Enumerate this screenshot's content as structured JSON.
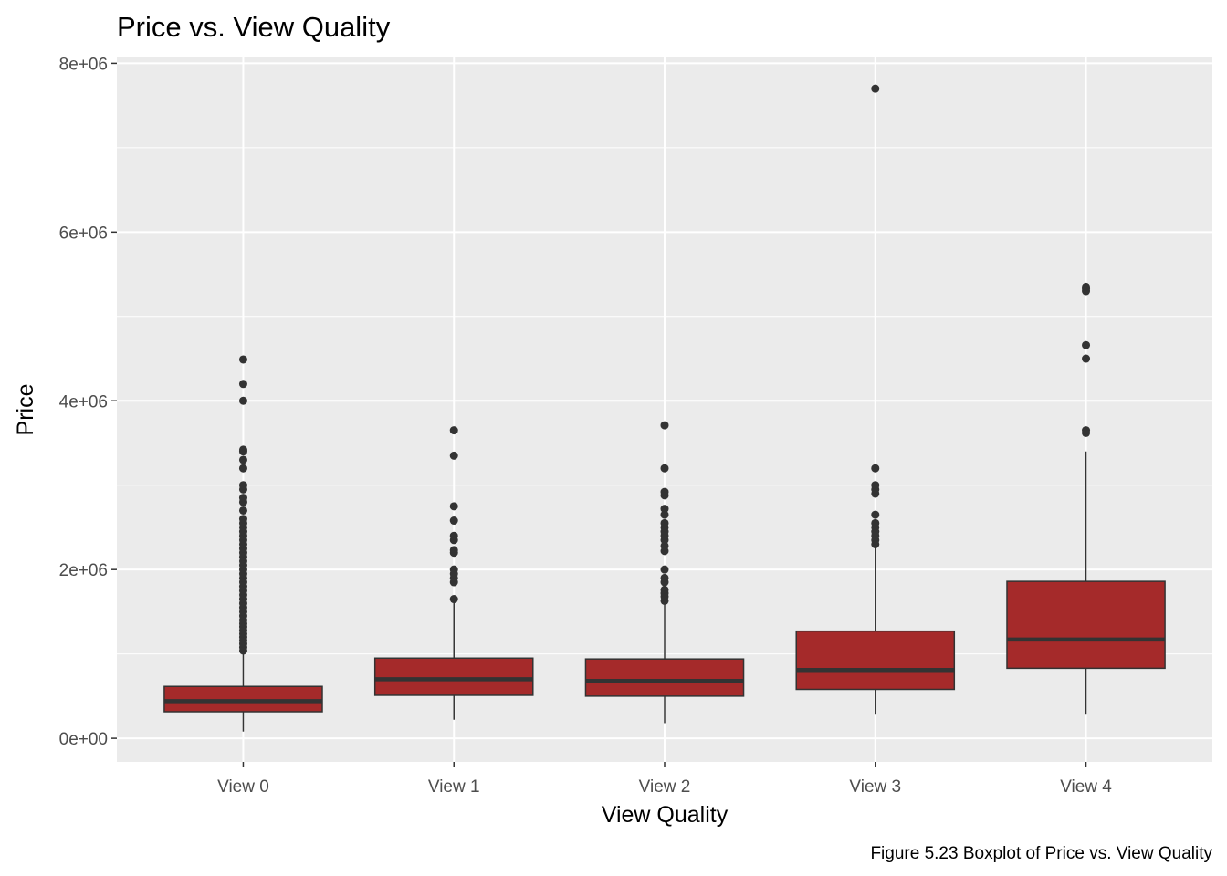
{
  "chart_data": {
    "type": "boxplot",
    "title": "Price vs. View Quality",
    "xlabel": "View Quality",
    "ylabel": "Price",
    "caption": "Figure 5.23 Boxplot of Price vs. View Quality",
    "categories": [
      "View 0",
      "View 1",
      "View 2",
      "View 3",
      "View 4"
    ],
    "yticks": [
      0,
      2000000,
      4000000,
      6000000,
      8000000
    ],
    "ytick_labels": [
      "0e+00",
      "2e+06",
      "4e+06",
      "6e+06",
      "8e+06"
    ],
    "ylim": [
      -280000,
      8080000
    ],
    "grid": true,
    "box_fill": "#a52a2a",
    "box_stroke": "#333333",
    "panel_background": "#ebebeb",
    "boxes": [
      {
        "category": "View 0",
        "whisker_low": 80000,
        "q1": 315000,
        "median": 440000,
        "q3": 615000,
        "whisker_high": 1060000,
        "outliers": [
          1040000,
          1080000,
          1120000,
          1160000,
          1200000,
          1240000,
          1280000,
          1320000,
          1360000,
          1400000,
          1450000,
          1500000,
          1550000,
          1600000,
          1650000,
          1700000,
          1750000,
          1800000,
          1850000,
          1900000,
          1950000,
          2000000,
          2050000,
          2100000,
          2150000,
          2200000,
          2250000,
          2300000,
          2350000,
          2400000,
          2450000,
          2500000,
          2550000,
          2600000,
          2700000,
          2800000,
          2850000,
          2950000,
          3000000,
          3200000,
          3300000,
          3400000,
          3420000,
          4000000,
          4200000,
          4490000
        ]
      },
      {
        "category": "View 1",
        "whisker_low": 220000,
        "q1": 510000,
        "median": 700000,
        "q3": 950000,
        "whisker_high": 1610000,
        "outliers": [
          1650000,
          1850000,
          1900000,
          1950000,
          2000000,
          2200000,
          2230000,
          2350000,
          2400000,
          2580000,
          2750000,
          3350000,
          3650000
        ]
      },
      {
        "category": "View 2",
        "whisker_low": 180000,
        "q1": 500000,
        "median": 680000,
        "q3": 940000,
        "whisker_high": 1600000,
        "outliers": [
          1630000,
          1680000,
          1720000,
          1760000,
          1850000,
          1900000,
          2000000,
          2220000,
          2280000,
          2350000,
          2400000,
          2450000,
          2500000,
          2550000,
          2650000,
          2720000,
          2880000,
          2920000,
          3200000,
          3710000
        ]
      },
      {
        "category": "View 3",
        "whisker_low": 280000,
        "q1": 580000,
        "median": 810000,
        "q3": 1270000,
        "whisker_high": 2280000,
        "outliers": [
          2300000,
          2350000,
          2400000,
          2450000,
          2500000,
          2550000,
          2650000,
          2900000,
          2950000,
          3000000,
          3200000,
          7700000
        ]
      },
      {
        "category": "View 4",
        "whisker_low": 280000,
        "q1": 830000,
        "median": 1170000,
        "q3": 1860000,
        "whisker_high": 3400000,
        "outliers": [
          3620000,
          3650000,
          4500000,
          4660000,
          5300000,
          5330000,
          5350000
        ]
      }
    ]
  }
}
